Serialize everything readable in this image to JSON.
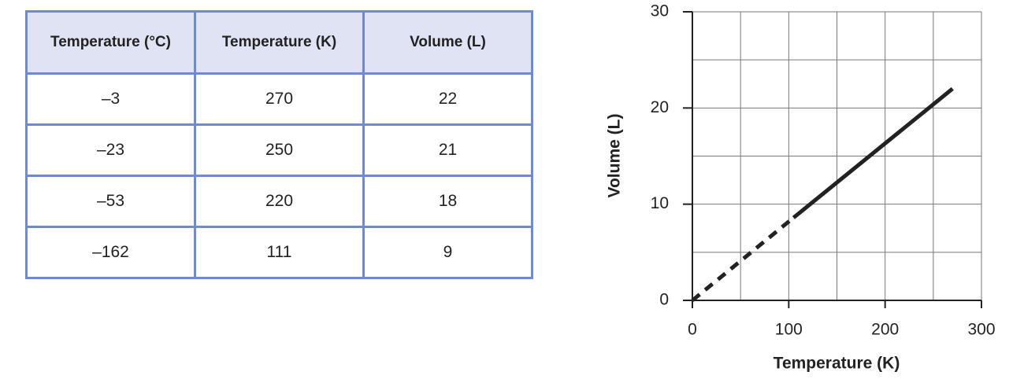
{
  "table": {
    "header": [
      "Temperature (°C)",
      "Temperature (K)",
      "Volume (L)"
    ],
    "rows": [
      [
        "–3",
        "270",
        "22"
      ],
      [
        "–23",
        "250",
        "21"
      ],
      [
        "–53",
        "220",
        "18"
      ],
      [
        "–162",
        "111",
        "9"
      ]
    ]
  },
  "chart_data": {
    "type": "line",
    "x_label": "Temperature (K)",
    "y_label": "Volume (L)",
    "xlim": [
      0,
      300
    ],
    "ylim": [
      0,
      30
    ],
    "xticks": [
      0,
      100,
      200,
      300
    ],
    "yticks": [
      0,
      10,
      20,
      30
    ],
    "x_gridlines": [
      0,
      50,
      100,
      150,
      200,
      250,
      300
    ],
    "y_gridlines": [
      0,
      5,
      10,
      15,
      20,
      25,
      30
    ],
    "grid": true,
    "grid_color": "#777",
    "series": [
      {
        "color": "#222",
        "style": "dashed",
        "x": [
          0,
          105
        ],
        "values": [
          0,
          8.6
        ]
      },
      {
        "color": "#222",
        "style": "solid",
        "x": [
          105,
          270
        ],
        "values": [
          8.6,
          22
        ]
      }
    ]
  }
}
